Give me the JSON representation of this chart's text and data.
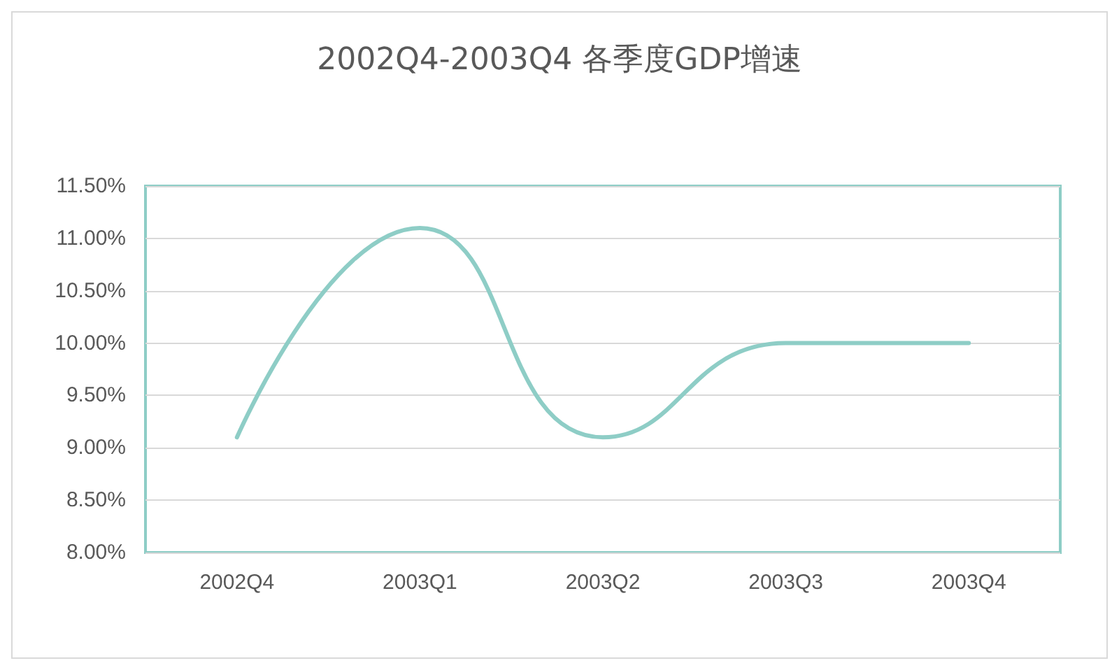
{
  "chart_data": {
    "type": "line",
    "title": "2002Q4-2003Q4 各季度GDP增速",
    "categories": [
      "2002Q4",
      "2003Q1",
      "2003Q2",
      "2003Q3",
      "2003Q4"
    ],
    "series": [
      {
        "color": "#8ecdc6",
        "values": [
          9.1,
          11.1,
          9.1,
          10.0,
          10.0
        ]
      }
    ],
    "ylim": [
      8,
      11.5
    ],
    "yticks": [
      {
        "value": 8,
        "label": "8.00%"
      },
      {
        "value": 8.5,
        "label": "8.50%"
      },
      {
        "value": 9,
        "label": "9.00%"
      },
      {
        "value": 9.5,
        "label": "9.50%"
      },
      {
        "value": 10,
        "label": "10.00%"
      },
      {
        "value": 10.5,
        "label": "10.50%"
      },
      {
        "value": 11,
        "label": "11.00%"
      },
      {
        "value": 11.5,
        "label": "11.50%"
      }
    ],
    "grid": "y",
    "marker": "none",
    "line_style": "solid"
  }
}
